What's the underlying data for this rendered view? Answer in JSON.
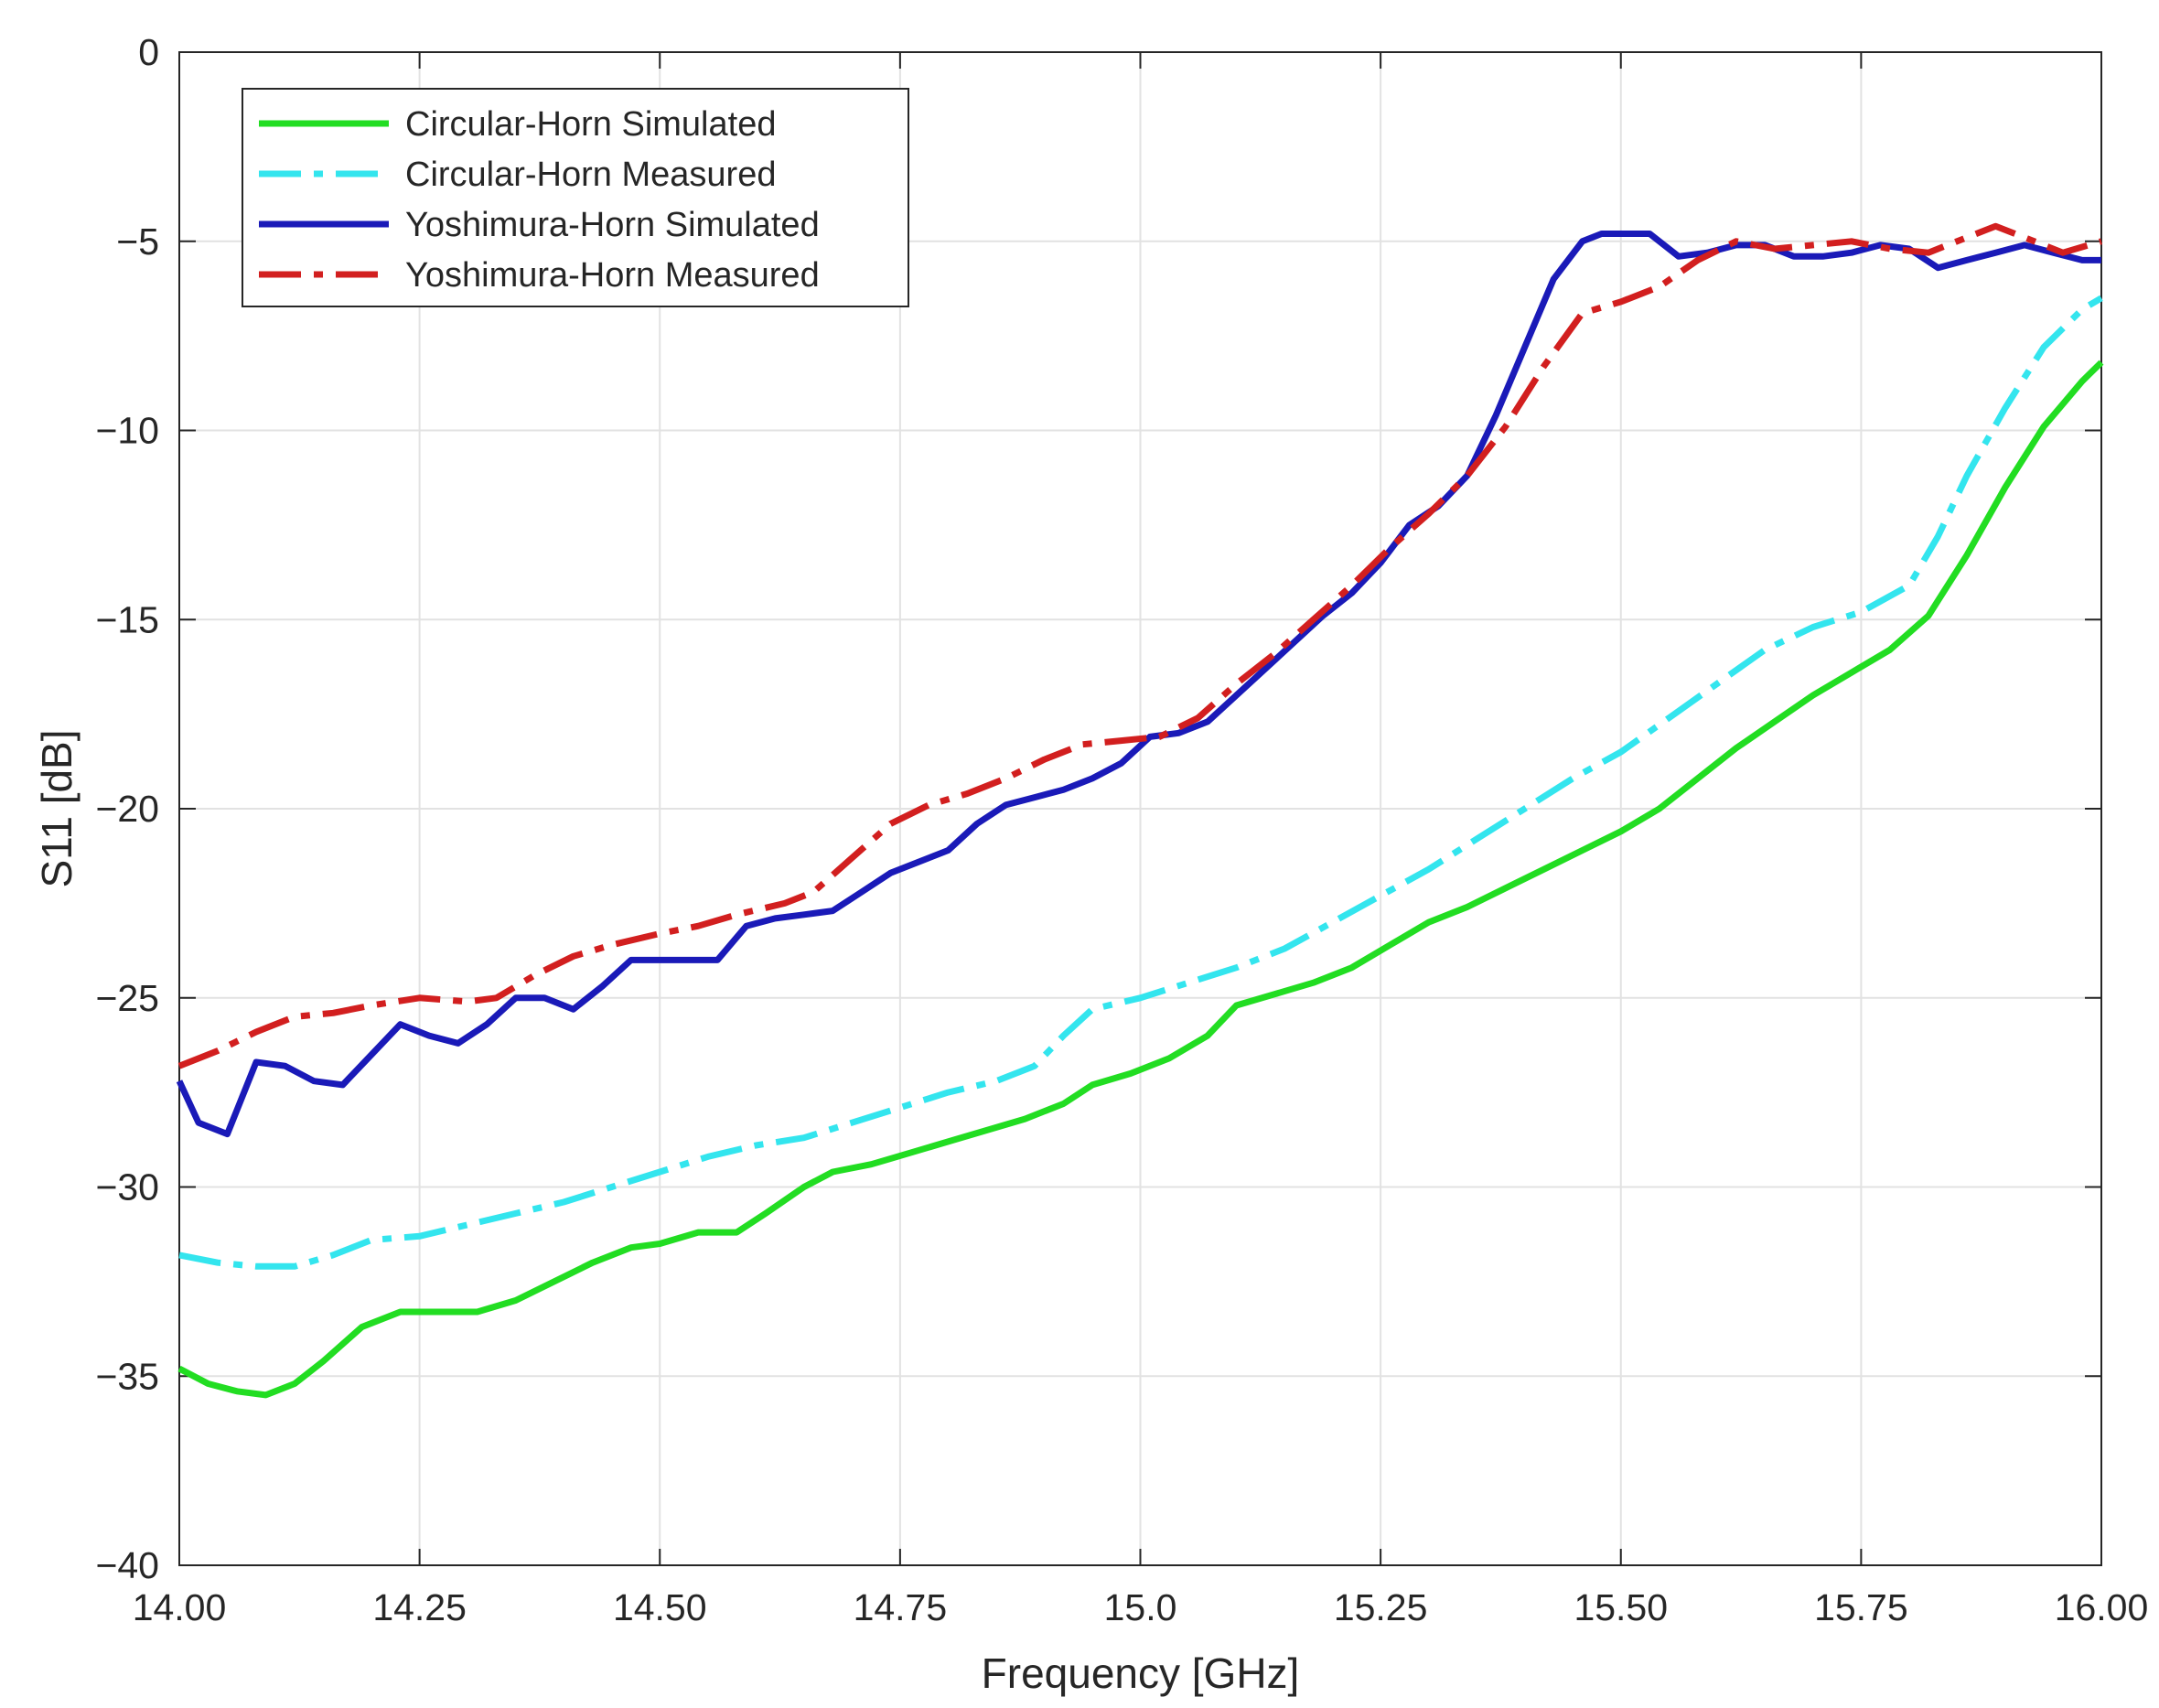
{
  "chart_data": {
    "type": "line",
    "title": "",
    "xlabel": "Frequency [GHz]",
    "ylabel": "S11 [dB]",
    "xlim": [
      14.0,
      16.0
    ],
    "ylim": [
      -40,
      0
    ],
    "xticks": [
      14.0,
      14.25,
      14.5,
      14.75,
      15.0,
      15.25,
      15.5,
      15.75,
      16.0
    ],
    "xtick_labels": [
      "14.00",
      "14.25",
      "14.50",
      "14.75",
      "15.0",
      "15.25",
      "15.50",
      "15.75",
      "16.00"
    ],
    "yticks": [
      0,
      -5,
      -10,
      -15,
      -20,
      -25,
      -30,
      -35,
      -40
    ],
    "ytick_labels": [
      "0",
      "−5",
      "−10",
      "−15",
      "−20",
      "−25",
      "−30",
      "−35",
      "−40"
    ],
    "grid": true,
    "legend_position": "top-left",
    "series": [
      {
        "name": "Circular-Horn Simulated",
        "color": "#22dd22",
        "style": "solid",
        "x": [
          14.0,
          14.03,
          14.06,
          14.09,
          14.12,
          14.15,
          14.19,
          14.23,
          14.27,
          14.31,
          14.35,
          14.39,
          14.43,
          14.47,
          14.5,
          14.54,
          14.58,
          14.61,
          14.65,
          14.68,
          14.72,
          14.76,
          14.8,
          14.84,
          14.88,
          14.92,
          14.95,
          14.99,
          15.03,
          15.07,
          15.1,
          15.14,
          15.18,
          15.22,
          15.26,
          15.3,
          15.34,
          15.38,
          15.42,
          15.46,
          15.5,
          15.54,
          15.58,
          15.62,
          15.66,
          15.7,
          15.74,
          15.78,
          15.82,
          15.86,
          15.9,
          15.94,
          15.98,
          16.0
        ],
        "y": [
          -34.8,
          -35.2,
          -35.4,
          -35.5,
          -35.2,
          -34.6,
          -33.7,
          -33.3,
          -33.3,
          -33.3,
          -33.0,
          -32.5,
          -32.0,
          -31.6,
          -31.5,
          -31.2,
          -31.2,
          -30.7,
          -30.0,
          -29.6,
          -29.4,
          -29.1,
          -28.8,
          -28.5,
          -28.2,
          -27.8,
          -27.3,
          -27.0,
          -26.6,
          -26.0,
          -25.2,
          -24.9,
          -24.6,
          -24.2,
          -23.6,
          -23.0,
          -22.6,
          -22.1,
          -21.6,
          -21.1,
          -20.6,
          -20.0,
          -19.2,
          -18.4,
          -17.7,
          -17.0,
          -16.4,
          -15.8,
          -14.9,
          -13.3,
          -11.5,
          -9.9,
          -8.7,
          -8.2
        ]
      },
      {
        "name": "Circular-Horn Measured",
        "color": "#33e5ee",
        "style": "dashdot",
        "x": [
          14.0,
          14.04,
          14.08,
          14.12,
          14.16,
          14.2,
          14.25,
          14.3,
          14.35,
          14.4,
          14.45,
          14.5,
          14.55,
          14.6,
          14.65,
          14.7,
          14.75,
          14.8,
          14.85,
          14.89,
          14.92,
          14.95,
          15.0,
          15.05,
          15.1,
          15.15,
          15.2,
          15.25,
          15.3,
          15.35,
          15.4,
          15.45,
          15.5,
          15.55,
          15.6,
          15.65,
          15.7,
          15.75,
          15.8,
          15.83,
          15.86,
          15.9,
          15.94,
          15.98,
          16.0
        ],
        "y": [
          -31.8,
          -32.0,
          -32.1,
          -32.1,
          -31.8,
          -31.4,
          -31.3,
          -31.0,
          -30.7,
          -30.4,
          -30.0,
          -29.6,
          -29.2,
          -28.9,
          -28.7,
          -28.3,
          -27.9,
          -27.5,
          -27.2,
          -26.8,
          -26.0,
          -25.3,
          -25.0,
          -24.6,
          -24.2,
          -23.7,
          -23.0,
          -22.3,
          -21.6,
          -20.8,
          -20.0,
          -19.2,
          -18.5,
          -17.6,
          -16.7,
          -15.8,
          -15.2,
          -14.8,
          -14.1,
          -12.8,
          -11.2,
          -9.4,
          -7.8,
          -6.8,
          -6.5
        ]
      },
      {
        "name": "Yoshimura-Horn Simulated",
        "color": "#1a1ab8",
        "style": "solid",
        "x": [
          14.0,
          14.02,
          14.05,
          14.08,
          14.11,
          14.14,
          14.17,
          14.2,
          14.23,
          14.26,
          14.29,
          14.32,
          14.35,
          14.38,
          14.41,
          14.44,
          14.47,
          14.5,
          14.53,
          14.56,
          14.59,
          14.62,
          14.65,
          14.68,
          14.71,
          14.74,
          14.77,
          14.8,
          14.83,
          14.86,
          14.89,
          14.92,
          14.95,
          14.98,
          15.01,
          15.04,
          15.07,
          15.1,
          15.13,
          15.16,
          15.19,
          15.22,
          15.25,
          15.28,
          15.31,
          15.34,
          15.37,
          15.4,
          15.43,
          15.46,
          15.48,
          15.5,
          15.53,
          15.56,
          15.59,
          15.62,
          15.65,
          15.68,
          15.71,
          15.74,
          15.77,
          15.8,
          15.83,
          15.86,
          15.89,
          15.92,
          15.95,
          15.98,
          16.0
        ],
        "y": [
          -27.2,
          -28.3,
          -28.6,
          -26.7,
          -26.8,
          -27.2,
          -27.3,
          -26.5,
          -25.7,
          -26.0,
          -26.2,
          -25.7,
          -25.0,
          -25.0,
          -25.3,
          -24.7,
          -24.0,
          -24.0,
          -24.0,
          -24.0,
          -23.1,
          -22.9,
          -22.8,
          -22.7,
          -22.2,
          -21.7,
          -21.4,
          -21.1,
          -20.4,
          -19.9,
          -19.7,
          -19.5,
          -19.2,
          -18.8,
          -18.1,
          -18.0,
          -17.7,
          -17.0,
          -16.3,
          -15.6,
          -14.9,
          -14.3,
          -13.5,
          -12.5,
          -12.0,
          -11.2,
          -9.6,
          -7.8,
          -6.0,
          -5.0,
          -4.8,
          -4.8,
          -4.8,
          -5.4,
          -5.3,
          -5.1,
          -5.1,
          -5.4,
          -5.4,
          -5.3,
          -5.1,
          -5.2,
          -5.7,
          -5.5,
          -5.3,
          -5.1,
          -5.3,
          -5.5,
          -5.5
        ]
      },
      {
        "name": "Yoshimura-Horn Measured",
        "color": "#d21f1f",
        "style": "dashdot",
        "x": [
          14.0,
          14.04,
          14.08,
          14.12,
          14.16,
          14.2,
          14.25,
          14.3,
          14.33,
          14.37,
          14.41,
          14.45,
          14.5,
          14.54,
          14.58,
          14.63,
          14.66,
          14.7,
          14.74,
          14.78,
          14.82,
          14.86,
          14.9,
          14.94,
          14.98,
          15.02,
          15.06,
          15.1,
          15.14,
          15.18,
          15.22,
          15.26,
          15.3,
          15.34,
          15.38,
          15.42,
          15.46,
          15.5,
          15.54,
          15.58,
          15.62,
          15.66,
          15.7,
          15.74,
          15.78,
          15.82,
          15.86,
          15.89,
          15.92,
          15.96,
          16.0
        ],
        "y": [
          -26.8,
          -26.4,
          -25.9,
          -25.5,
          -25.4,
          -25.2,
          -25.0,
          -25.1,
          -25.0,
          -24.4,
          -23.9,
          -23.6,
          -23.3,
          -23.1,
          -22.8,
          -22.5,
          -22.2,
          -21.3,
          -20.4,
          -19.9,
          -19.6,
          -19.2,
          -18.7,
          -18.3,
          -18.2,
          -18.1,
          -17.6,
          -16.7,
          -15.9,
          -15.0,
          -14.1,
          -13.1,
          -12.2,
          -11.2,
          -9.9,
          -8.3,
          -6.9,
          -6.6,
          -6.2,
          -5.5,
          -5.0,
          -5.2,
          -5.1,
          -5.0,
          -5.2,
          -5.3,
          -4.9,
          -4.6,
          -4.9,
          -5.3,
          -5.0
        ]
      }
    ]
  }
}
